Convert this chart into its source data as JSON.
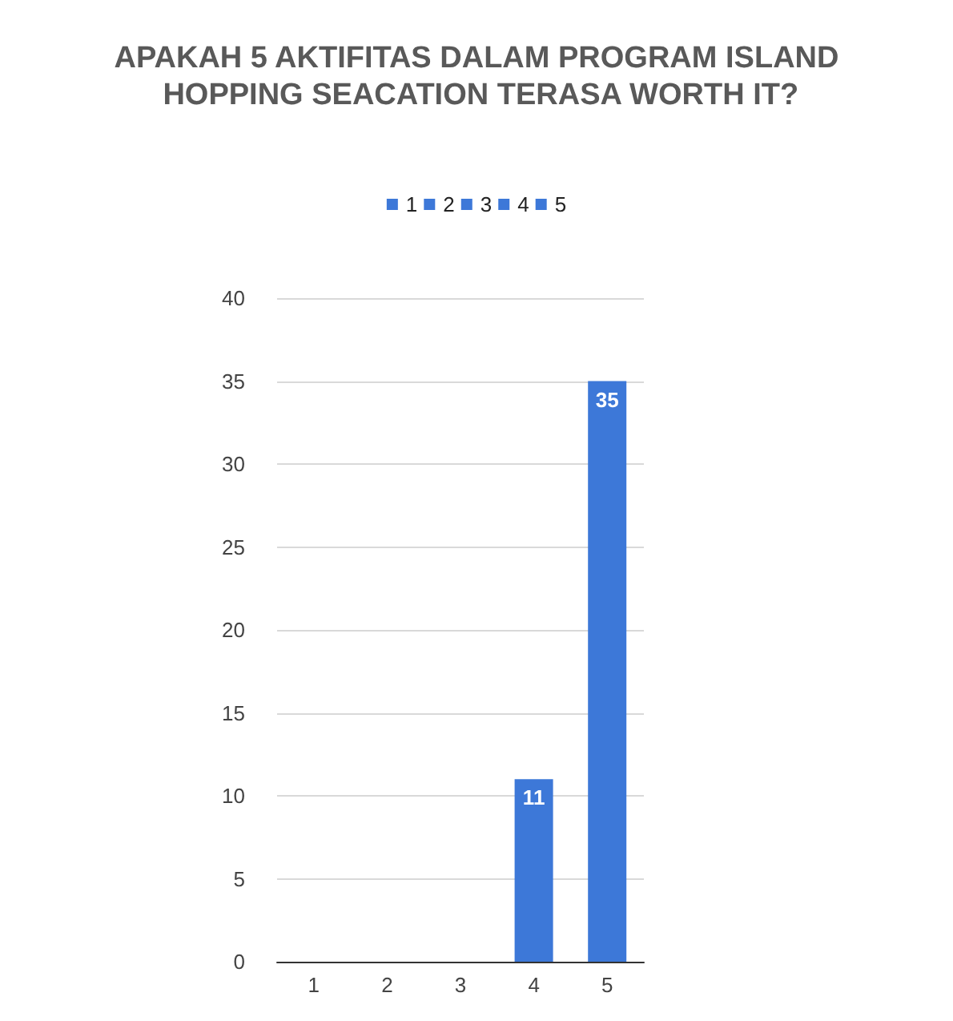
{
  "chart_data": {
    "type": "bar",
    "title": "APAKAH 5 AKTIFITAS DALAM PROGRAM ISLAND HOPPING SEACATION TERASA WORTH IT?",
    "categories": [
      "1",
      "2",
      "3",
      "4",
      "5"
    ],
    "series": [
      {
        "name": "1",
        "color": "#3d78d8",
        "values": [
          0,
          null,
          null,
          null,
          null
        ],
        "value_labels": [
          null,
          null,
          null,
          null,
          null
        ]
      },
      {
        "name": "2",
        "color": "#3d78d8",
        "values": [
          null,
          0,
          null,
          null,
          null
        ],
        "value_labels": [
          null,
          null,
          null,
          null,
          null
        ]
      },
      {
        "name": "3",
        "color": "#3d78d8",
        "values": [
          null,
          null,
          0,
          null,
          null
        ],
        "value_labels": [
          null,
          null,
          null,
          null,
          null
        ]
      },
      {
        "name": "4",
        "color": "#3d78d8",
        "values": [
          null,
          null,
          null,
          11,
          null
        ],
        "value_labels": [
          null,
          null,
          null,
          "11",
          null
        ]
      },
      {
        "name": "5",
        "color": "#3d78d8",
        "values": [
          null,
          null,
          null,
          null,
          35
        ],
        "value_labels": [
          null,
          null,
          null,
          null,
          "35"
        ]
      }
    ],
    "ylim": [
      0,
      40
    ],
    "yticks": [
      0,
      5,
      10,
      15,
      20,
      25,
      30,
      35,
      40
    ],
    "grid": "y",
    "legend": "top"
  }
}
